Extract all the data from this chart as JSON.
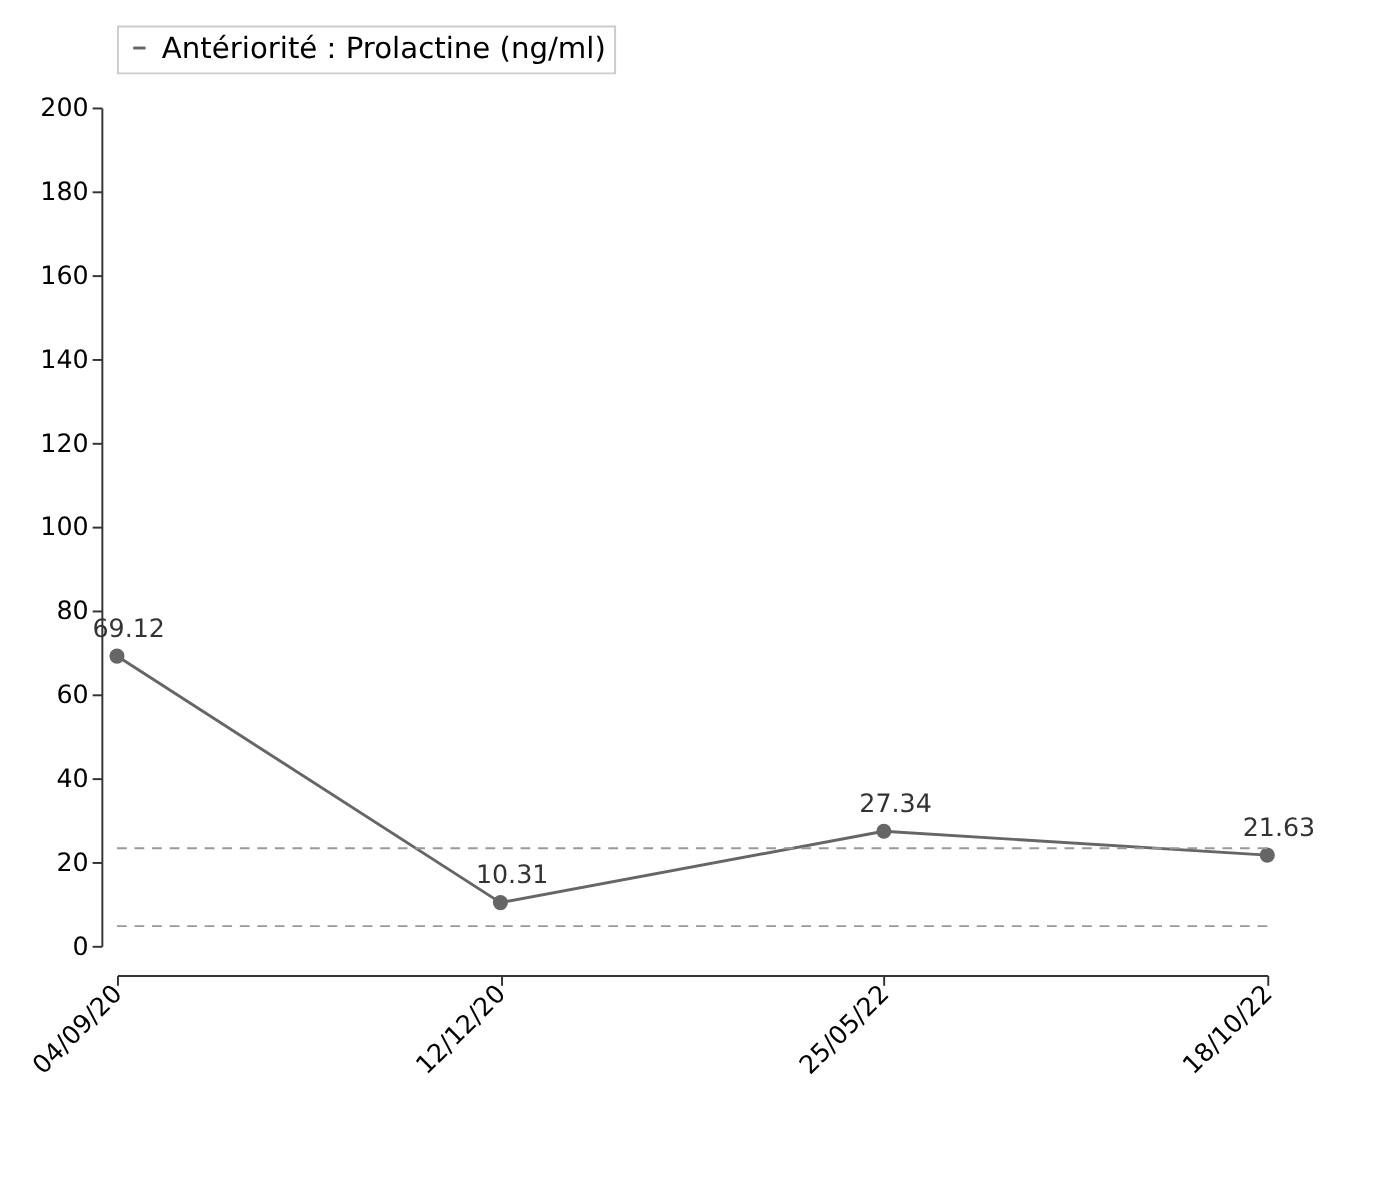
{
  "chart_data": {
    "type": "line",
    "categories": [
      "04/09/20",
      "12/12/20",
      "25/05/22",
      "18/10/22"
    ],
    "series": [
      {
        "name": "Antériorité : Prolactine (ng/ml)",
        "color": "#666666",
        "values": [
          69.12,
          10.31,
          27.34,
          21.63
        ]
      }
    ],
    "ylim": [
      0,
      200
    ],
    "yticks": [
      0,
      20,
      40,
      60,
      80,
      100,
      120,
      140,
      160,
      180,
      200
    ],
    "ref_lines": [
      {
        "axis": "y",
        "value": 23.3,
        "color": "#999999",
        "line_style": "dashed"
      },
      {
        "axis": "y",
        "value": 4.7,
        "color": "#999999",
        "line_style": "dashed"
      }
    ],
    "data_labels": true,
    "marker": "circle",
    "line_style": "solid",
    "legend": "top",
    "grid": false
  }
}
